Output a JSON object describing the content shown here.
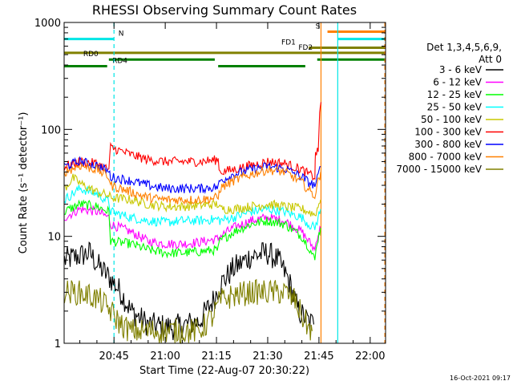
{
  "chart_data": {
    "type": "line",
    "title": "RHESSI Observing Summary Count Rates",
    "xlabel": "Start Time (22-Aug-07 20:30:22)",
    "ylabel": "Count Rate (s⁻¹ detector⁻¹)",
    "yscale": "log",
    "ylim": [
      1,
      1000
    ],
    "xlim_minutes": [
      30.4,
      124.5
    ],
    "x_ticks": [
      {
        "label": "20:45",
        "min": 45
      },
      {
        "label": "21:00",
        "min": 60
      },
      {
        "label": "21:15",
        "min": 75
      },
      {
        "label": "21:30",
        "min": 90
      },
      {
        "label": "21:45",
        "min": 105
      },
      {
        "label": "22:00",
        "min": 120
      }
    ],
    "y_ticks": [
      {
        "label": "1",
        "v": 1
      },
      {
        "label": "10",
        "v": 10
      },
      {
        "label": "100",
        "v": 100
      },
      {
        "label": "1000",
        "v": 1000
      }
    ],
    "legend_header": [
      "Det 1,3,4,5,6,9,",
      "Att 0"
    ],
    "series": [
      {
        "name": "3 - 6 keV",
        "color": "#000000",
        "x": [
          30.5,
          38,
          40,
          44,
          47,
          50,
          55,
          62,
          70,
          74,
          76,
          80,
          85,
          90,
          93,
          96,
          99,
          102,
          103.5
        ],
        "y": [
          6,
          7,
          5.5,
          4,
          3,
          2,
          1.5,
          1.4,
          1.6,
          2.5,
          3.5,
          5,
          6.5,
          7,
          6,
          4,
          2,
          1.6,
          1.5
        ]
      },
      {
        "name": "6 - 12 keV",
        "color": "#ff00ff",
        "x": [
          30.5,
          35,
          40,
          43.5,
          44,
          50,
          55,
          60,
          65,
          70,
          75.5,
          76,
          80,
          85,
          90,
          95,
          100,
          102,
          103.8,
          104.5,
          105.5
        ],
        "y": [
          15,
          18,
          17,
          15,
          13,
          11,
          9,
          8.5,
          8.5,
          8.8,
          9.5,
          10,
          12,
          14,
          15,
          14,
          11,
          9,
          7.5,
          10,
          12
        ]
      },
      {
        "name": "12 - 25 keV",
        "color": "#00ff00",
        "x": [
          30.5,
          35,
          40,
          43.5,
          44,
          50,
          55,
          60,
          65,
          70,
          75.5,
          76,
          80,
          85,
          90,
          95,
          100,
          102,
          103.8,
          104.5,
          105.5
        ],
        "y": [
          17,
          20,
          19,
          17,
          9,
          8.5,
          7.5,
          7,
          7,
          7.2,
          7.5,
          9,
          11,
          13,
          14,
          13,
          10,
          8,
          6,
          9,
          12
        ]
      },
      {
        "name": "25 - 50 keV",
        "color": "#00ffff",
        "x": [
          30.5,
          35,
          40,
          43.5,
          44,
          50,
          55,
          60,
          65,
          70,
          75.5,
          76,
          80,
          85,
          90,
          95,
          100,
          102,
          103.8,
          104.5,
          105.5
        ],
        "y": [
          22,
          28,
          25,
          21,
          17,
          15,
          14,
          13.5,
          14,
          14,
          14.5,
          14,
          15,
          17,
          18,
          17,
          15,
          13,
          12,
          14,
          18
        ]
      },
      {
        "name": "50 - 100 keV",
        "color": "#c8c800",
        "x": [
          30.5,
          33,
          36,
          40,
          43.5,
          44,
          50,
          55,
          60,
          65,
          70,
          75.5,
          76,
          80,
          85,
          90,
          95,
          100,
          102,
          103.8,
          104.5,
          105.5
        ],
        "y": [
          28,
          35,
          30,
          26,
          24,
          23,
          22,
          20,
          19,
          19,
          19.5,
          20,
          18,
          18,
          19,
          20,
          19,
          18,
          17,
          16,
          18,
          22
        ]
      },
      {
        "name": "100 - 300 keV",
        "color": "#ff0000",
        "x": [
          30.5,
          35,
          40,
          43.5,
          44,
          50,
          55,
          60,
          65,
          70,
          75.5,
          76,
          80,
          85,
          90,
          95,
          100,
          102,
          103.8,
          104,
          104.8,
          105.2,
          105.6
        ],
        "y": [
          45,
          50,
          48,
          42,
          68,
          58,
          52,
          50,
          50,
          50,
          52,
          40,
          42,
          46,
          50,
          48,
          42,
          38,
          36,
          62,
          60,
          150,
          180
        ]
      },
      {
        "name": "300 - 800 keV",
        "color": "#0000ff",
        "x": [
          30.5,
          35,
          40,
          43.5,
          44,
          50,
          55,
          60,
          65,
          70,
          75.5,
          76,
          80,
          85,
          90,
          95,
          100,
          102,
          103.8,
          104.5,
          105.5
        ],
        "y": [
          45,
          50,
          46,
          40,
          36,
          33,
          30,
          28,
          28,
          28,
          29,
          33,
          38,
          42,
          45,
          43,
          36,
          32,
          30,
          34,
          45
        ]
      },
      {
        "name": "800 - 7000 keV",
        "color": "#ff8000",
        "x": [
          30.5,
          35,
          40,
          43.5,
          44,
          50,
          55,
          60,
          65,
          70,
          75.5,
          76,
          80,
          85,
          90,
          95,
          100,
          102,
          103.8,
          104.5,
          105.5
        ],
        "y": [
          40,
          46,
          42,
          36,
          30,
          26,
          23,
          22,
          22,
          22,
          23,
          28,
          33,
          38,
          42,
          40,
          32,
          27,
          24,
          30,
          40
        ]
      },
      {
        "name": "7000 - 15000 keV",
        "color": "#808000",
        "x": [
          30.5,
          34,
          38,
          41,
          44,
          47,
          50,
          56,
          62,
          70,
          74,
          76,
          80,
          85,
          90,
          95,
          98,
          100,
          102,
          103
        ],
        "y": [
          3,
          3,
          2.8,
          2.5,
          2,
          1.5,
          1.3,
          1.3,
          1.3,
          1.3,
          1.8,
          2.5,
          2.8,
          3,
          3,
          3,
          2.5,
          1.8,
          1.4,
          1.3
        ]
      }
    ],
    "flags": [
      {
        "label": "N",
        "color": "#00e6e6",
        "v": 700,
        "segments": [
          [
            30.5,
            45
          ]
        ],
        "label_at": 46.3
      },
      {
        "label": "FD1",
        "color": "#808000",
        "v": 580,
        "segments": [
          [
            102,
            124.4
          ]
        ],
        "label_at": 94
      },
      {
        "label": "FD2",
        "color": "#808000",
        "v": 520,
        "segments": [
          [
            30.5,
            124.4
          ]
        ],
        "label_at": 99
      },
      {
        "label": "RD0",
        "color": "#008000",
        "v": 450,
        "segments": [
          [
            43.5,
            74.5
          ],
          [
            104.5,
            124.4
          ]
        ],
        "label_at": 36
      },
      {
        "label": "RD4",
        "color": "#008000",
        "v": 390,
        "segments": [
          [
            30.5,
            43
          ],
          [
            75.5,
            101
          ]
        ],
        "label_at": 44.5
      },
      {
        "label": "S",
        "color": "#ff8000",
        "v": 820,
        "segments": [
          [
            107.5,
            124.4
          ]
        ],
        "label_at": 104
      },
      {
        "label": "",
        "color": "#00e6e6",
        "v": 700,
        "segments": [
          [
            110.5,
            124.4
          ]
        ],
        "label_at": 0
      }
    ],
    "vertical_markers": [
      {
        "color": "#00e6e6",
        "min": 45,
        "dashed": true
      },
      {
        "color": "#ff8000",
        "min": 105.6,
        "dashed": false
      },
      {
        "color": "#00e6e6",
        "min": 110.5,
        "dashed": false
      },
      {
        "color": "#ff8000",
        "min": 124.3,
        "dashed": true
      }
    ]
  },
  "footer_timestamp": "16-Oct-2021 09:17"
}
